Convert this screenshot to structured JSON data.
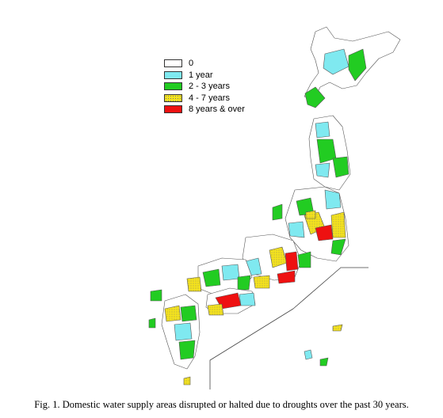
{
  "legend": {
    "items": [
      {
        "label": "0",
        "color": "#ffffff"
      },
      {
        "label": "1 year",
        "color": "#7fe9f0"
      },
      {
        "label": "2 - 3 years",
        "color": "#22cc22"
      },
      {
        "label": "4 - 7 years",
        "color": "#f5e31c"
      },
      {
        "label": "8 years & over",
        "color": "#ee1111"
      }
    ]
  },
  "caption": "Fig. 1. Domestic water supply areas disrupted or halted due to droughts over the past 30 years."
}
